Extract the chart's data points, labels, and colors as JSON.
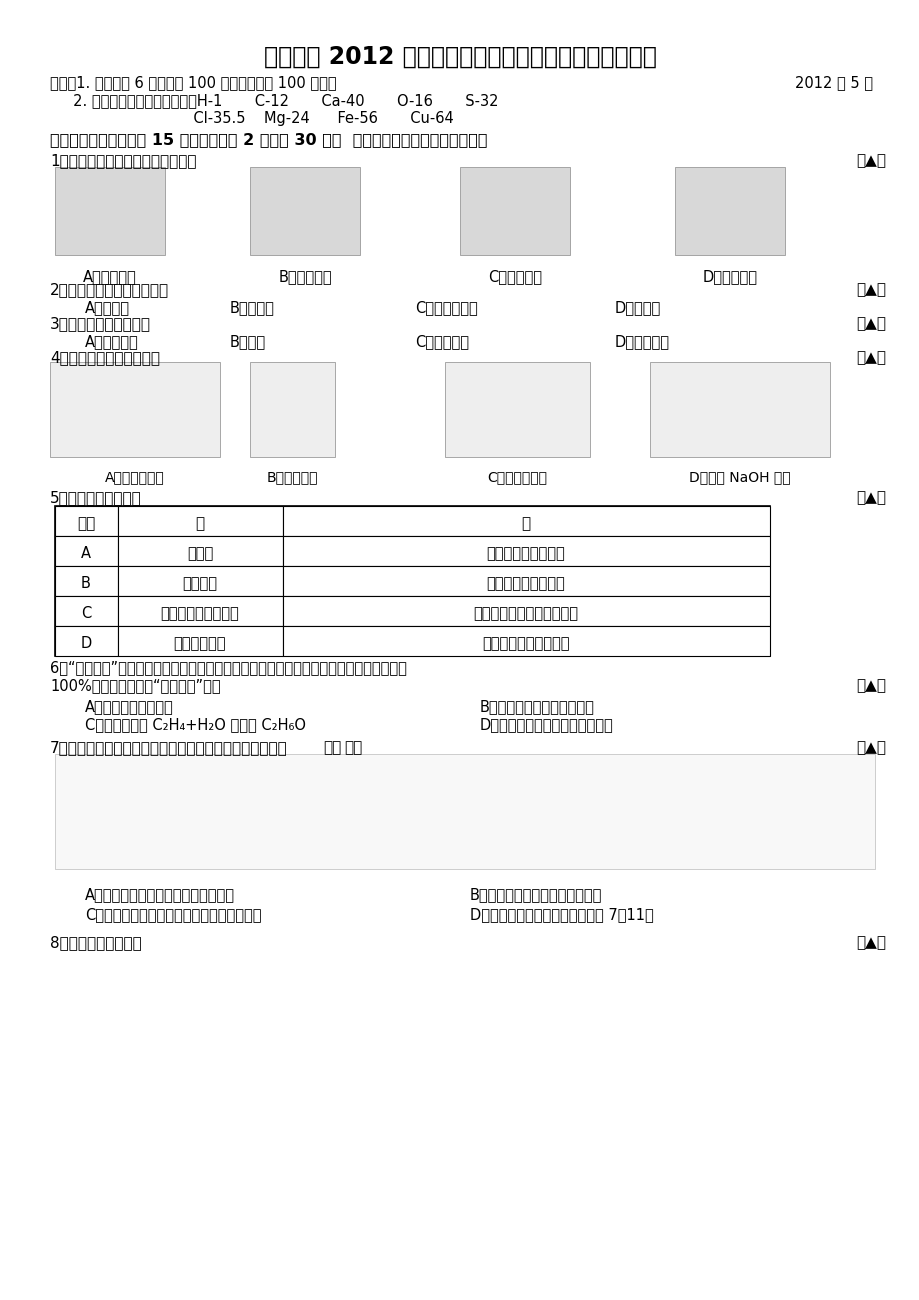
{
  "bg_color": "#ffffff",
  "title": "镌江三中 2012 年初中升学、毕业统一考试化学模拟试卷",
  "note_line1": "说明：1. 本试卷公 6 页，满分 100 分。考试时间 100 分钟。",
  "note_date": "2012 年 5 月",
  "note_line2": "     2. 可能用到的相对原子质量：H-1       C-12       Ca-40       O-16       S-32",
  "note_line3": "                               Cl-35.5    Mg-24      Fe-56       Cu-64",
  "section1": "一．选择题（本题包括 15 小题，每小题 2 分，共 30 分。  每小题只有一个选项符合题意）",
  "q1": "1．下列变化中，属于物理变化的是",
  "q1_ans": "（▲）",
  "q1_opts": [
    "A．火箭发射",
    "B．燤的燃烧",
    "C．风力发电",
    "D．酸雨侵蚀"
  ],
  "q2": "2．下列属于化学性质的是。",
  "q2_ans": "（▲）",
  "q2_opts": [
    "A．溶解性",
    "B．挥发性",
    "C．金属活动性",
    "D．导电性"
  ],
  "q3": "3．下列属于纯净物的是",
  "q3_ans": "（▲）",
  "q3_opts": [
    "A．医用酒精",
    "B．干冰",
    "C．清新空气",
    "D．加碘食盐"
  ],
  "q4": "4．下列实验操作正确的是",
  "q4_ans": "（▲）",
  "q4_labels": [
    "A．检查气密性",
    "B．滴加试剂",
    "C．稾释浓硫酸",
    "D．称量 NaOH 固体"
  ],
  "q5": "5．下列说法错误的是",
  "q5_ans": "（▲）",
  "table_headers": [
    "选项",
    "甲",
    "乙"
  ],
  "table_rows": [
    [
      "A",
      "常见碱",
      "烧碱、熟石灰、氨水"
    ],
    [
      "B",
      "常见合金",
      "生铁、不锈锂、黄铜"
    ],
    [
      "C",
      "常见有机高分子材料",
      "合金、合成橡胶、合成纤维"
    ],
    [
      "D",
      "常见营养物质",
      "蛋白质、维生素、脂肪"
    ]
  ],
  "q6_line1": "6．“综色化学”工艺的理想状态是反应物中原子全部转化为欲得到的产物，即原子利用率为",
  "q6_line2": "100%。下列做法符合“综色化学”的是",
  "q6_ans": "（▲）",
  "q6_opt_A": "A．农民就地焚烧秸秆",
  "q6_opt_B": "B．深埋含镖、汞的废旧电池",
  "q6_opt_C": "C．工业制酒精 C₂H₄+H₂O 催化剂 C₂H₆O",
  "q6_opt_D": "D．化工生产中的废气向高空排放",
  "q7": "7．下图为治理汽车尾气所涉及反应的微观过程。下列说法",
  "q7_bold": "错误",
  "q7_after": "的是",
  "q7_ans": "（▲）",
  "q7_opt_A": "A．该反应的本质是原子的重新组合；",
  "q7_opt_B": "B．反应后分子个数发生了改变；",
  "q7_opt_C": "C．图中所示单质是空气中含量最多的气体；",
  "q7_opt_D": "D．生成单质与化合物的质量比为 7：11；",
  "q8": "8．下列说法错误的是",
  "q8_ans": "（▲）"
}
